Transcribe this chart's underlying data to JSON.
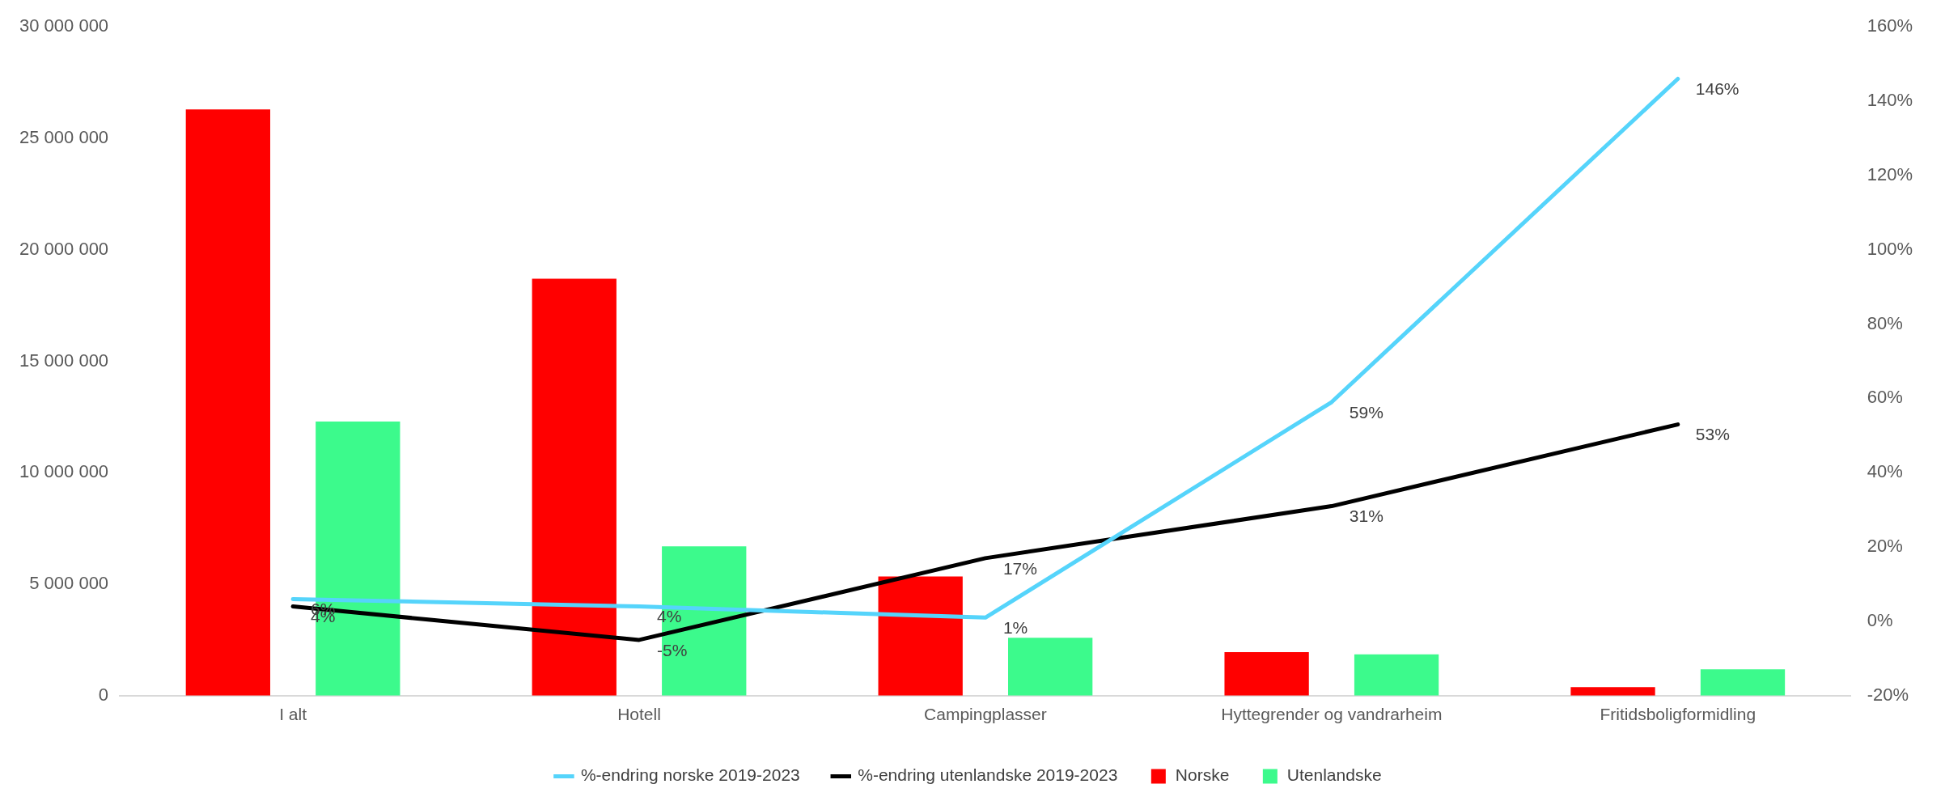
{
  "chart_data": {
    "type": "bar",
    "categories": [
      "I alt",
      "Hotell",
      "Campingplasser",
      "Hyttegrender og vandrarheim",
      "Fritidsboligformidling"
    ],
    "series": [
      {
        "name": "Norske",
        "color": "#ff0000",
        "values": [
          26300000,
          18700000,
          5350000,
          1950000,
          380000
        ]
      },
      {
        "name": "Utenlandske",
        "color": "#3cfa8c",
        "values": [
          12300000,
          6700000,
          2600000,
          1850000,
          1180000
        ]
      },
      {
        "name": "%-endring norske 2019-2023",
        "type": "line",
        "axis": "y2",
        "color": "#55d4fb",
        "values": [
          6,
          4,
          1,
          59,
          146
        ],
        "value_labels": [
          "6%",
          "4%",
          "1%",
          "59%",
          "146%"
        ]
      },
      {
        "name": "%-endring utenlandske 2019-2023",
        "type": "line",
        "axis": "y2",
        "color": "#000000",
        "values": [
          4,
          -5,
          17,
          31,
          53
        ],
        "value_labels": [
          "4%",
          "-5%",
          "17%",
          "31%",
          "53%"
        ]
      }
    ],
    "ylim": [
      0,
      30000000
    ],
    "yticks": [
      {
        "value": 0,
        "label": "0"
      },
      {
        "value": 5000000,
        "label": "5 000 000"
      },
      {
        "value": 10000000,
        "label": "10 000 000"
      },
      {
        "value": 15000000,
        "label": "15 000 000"
      },
      {
        "value": 20000000,
        "label": "20 000 000"
      },
      {
        "value": 25000000,
        "label": "25 000 000"
      },
      {
        "value": 30000000,
        "label": "30 000 000"
      }
    ],
    "y2lim": [
      -20,
      160
    ],
    "y2ticks": [
      {
        "value": -20,
        "label": "-20%"
      },
      {
        "value": 0,
        "label": "0%"
      },
      {
        "value": 20,
        "label": "20%"
      },
      {
        "value": 40,
        "label": "40%"
      },
      {
        "value": 60,
        "label": "60%"
      },
      {
        "value": 80,
        "label": "80%"
      },
      {
        "value": 100,
        "label": "100%"
      },
      {
        "value": 120,
        "label": "120%"
      },
      {
        "value": 140,
        "label": "140%"
      },
      {
        "value": 160,
        "label": "160%"
      }
    ],
    "grid": false,
    "legend": "bottom",
    "marker": "none"
  }
}
